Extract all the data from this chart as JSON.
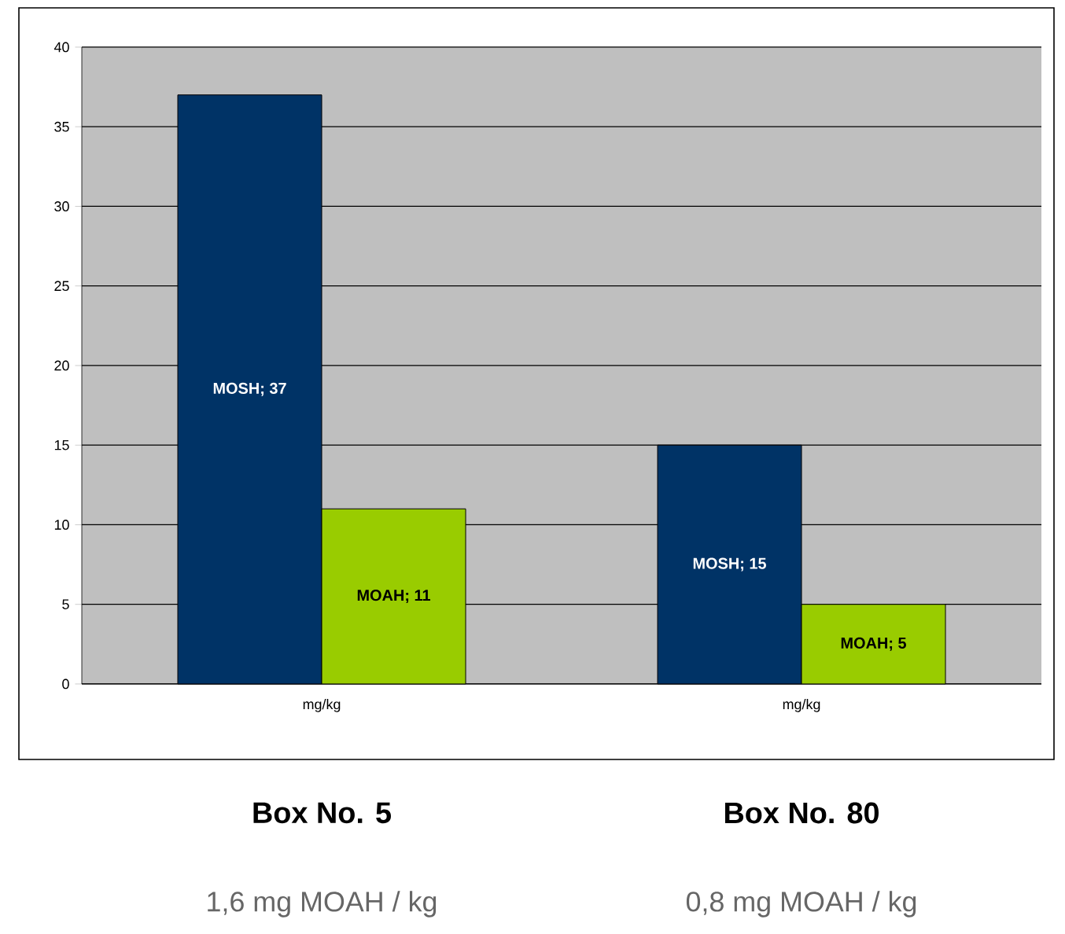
{
  "chart_data": {
    "type": "bar",
    "categories": [
      "mg/kg",
      "mg/kg"
    ],
    "series": [
      {
        "color": "#003366",
        "values": [
          37,
          15
        ],
        "value_labels": [
          "MOSH; 37",
          "MOSH; 15"
        ]
      },
      {
        "color": "#99cc00",
        "values": [
          11,
          5
        ],
        "value_labels": [
          "MOAH; 11",
          "MOAH; 5"
        ]
      }
    ],
    "ylim": [
      0,
      40
    ],
    "yticks": [
      0,
      5,
      10,
      15,
      20,
      25,
      30,
      35,
      40
    ],
    "grid": "y",
    "annotations": [
      "**Box No. 5**",
      "**Box No. 80**",
      "1,6 mg MOAH / kg",
      "0,8 mg MOAH / kg"
    ]
  }
}
